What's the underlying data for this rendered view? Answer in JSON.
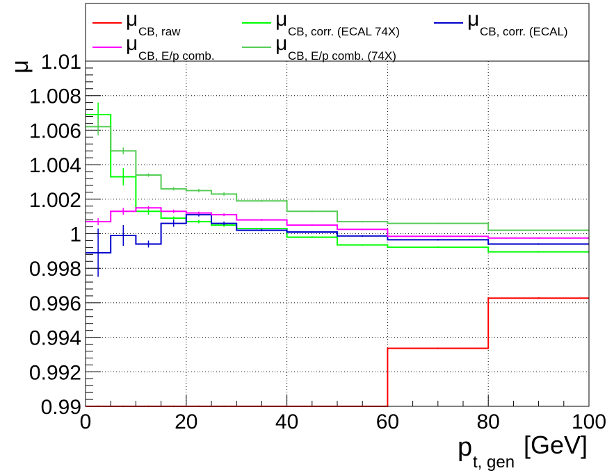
{
  "chart_data": {
    "type": "line",
    "step": true,
    "xlabel_main": "p",
    "xlabel_sub": "t, gen",
    "xlabel_unit": "[GeV]",
    "ylabel": "μ",
    "xlim": [
      0,
      100
    ],
    "ylim": [
      0.99,
      1.01
    ],
    "x_ticks": [
      "0",
      "20",
      "40",
      "60",
      "80",
      "100"
    ],
    "y_ticks": [
      "0.99",
      "0.992",
      "0.994",
      "0.996",
      "0.998",
      "1",
      "1.002",
      "1.004",
      "1.006",
      "1.008",
      "1.01"
    ],
    "grid": true,
    "legend_position": "top",
    "bin_edges": [
      0,
      5,
      10,
      15,
      20,
      25,
      30,
      40,
      50,
      60,
      80,
      100
    ],
    "series": [
      {
        "name_main": "μ",
        "name_sub": "CB, raw",
        "color": "#ff0000",
        "values": [
          0.99,
          0.99,
          0.99,
          0.99,
          0.99,
          0.99,
          0.99,
          0.99,
          0.99,
          0.99336,
          0.99627
        ],
        "errors": [
          0,
          0,
          0,
          0,
          0,
          0,
          0,
          0,
          0,
          4e-05,
          4e-05
        ]
      },
      {
        "name_main": "μ",
        "name_sub": "CB, corr. (ECAL 74X)",
        "color": "#00ff00",
        "values": [
          1.0069,
          1.0033,
          1.0013,
          1.0009,
          1.0007,
          1.0005,
          1.0003,
          0.9998,
          0.99935,
          0.99922,
          0.99895
        ],
        "errors": [
          0.0007,
          0.0005,
          0.0002,
          0.0001,
          0.0001,
          0.0001,
          5e-05,
          5e-05,
          4e-05,
          4e-05,
          3e-05
        ]
      },
      {
        "name_main": "μ",
        "name_sub": "CB, corr. (ECAL)",
        "color": "#0000cc",
        "values": [
          0.9989,
          0.9999,
          0.9994,
          1.0006,
          1.0011,
          1.0006,
          1.0002,
          1.0001,
          0.99987,
          0.99965,
          0.9994
        ],
        "errors": [
          0.0014,
          0.0006,
          0.0002,
          0.0002,
          0.0001,
          0.0001,
          6e-05,
          5e-05,
          4e-05,
          4e-05,
          3e-05
        ]
      },
      {
        "name_main": "μ",
        "name_sub": "E/p comb.",
        "name_prefix": "CB, ",
        "color": "#ff00ff",
        "values": [
          1.0007,
          1.0013,
          1.0015,
          1.0013,
          1.0012,
          1.0011,
          1.0008,
          1.0005,
          1.00025,
          0.99985,
          0.99975
        ],
        "errors": [
          0.0002,
          0.0002,
          0.0001,
          0.0001,
          8e-05,
          8e-05,
          5e-05,
          4e-05,
          3e-05,
          3e-05,
          2e-05
        ]
      },
      {
        "name_main": "μ",
        "name_sub": "E/p comb. (74X)",
        "name_prefix": "CB, ",
        "color": "#55cc55",
        "values": [
          1.0062,
          1.0048,
          1.0034,
          1.0026,
          1.0025,
          1.0023,
          1.0019,
          1.0013,
          1.0007,
          1.0006,
          1.0002
        ],
        "errors": [
          0.0005,
          0.0002,
          0.0001,
          0.0001,
          0.0001,
          0.0001,
          5e-05,
          4e-05,
          3e-05,
          3e-05,
          2e-05
        ]
      }
    ]
  }
}
